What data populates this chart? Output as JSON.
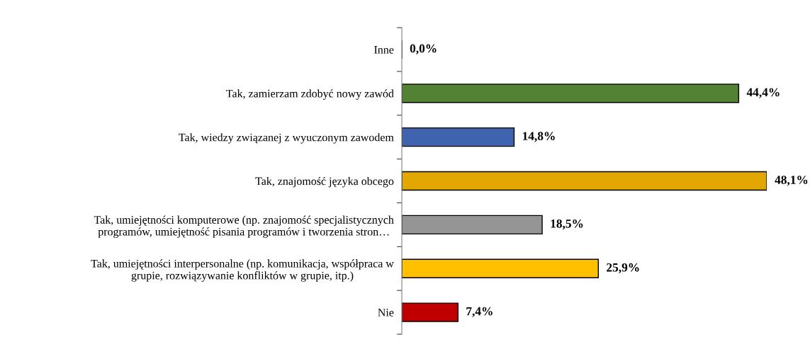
{
  "chart_data": {
    "type": "bar",
    "orientation": "horizontal",
    "categories": [
      "Inne",
      "Tak, zamierzam zdobyć nowy zawód",
      "Tak, wiedzy związanej z wyuczonym zawodem",
      "Tak, znajomość języka obcego",
      "Tak, umiejętności komputerowe (np. znajomość specjalistycznych\nprogramów, umiejętność pisania programów i tworzenia stron…",
      "Tak, umiejętności interpersonalne (np. komunikacja, współpraca w\ngrupie, rozwiązywanie konfliktów w grupie, itp.)",
      "Nie"
    ],
    "values": [
      0.0,
      44.4,
      14.8,
      48.1,
      18.5,
      25.9,
      7.4
    ],
    "colors": [
      "#000000",
      "#548235",
      "#3f64ad",
      "#e2a700",
      "#959595",
      "#ffc000",
      "#c00000"
    ],
    "value_labels": [
      "0,0%",
      "44,4%",
      "14,8%",
      "48,1%",
      "18,5%",
      "25,9%",
      "7,4%"
    ],
    "tick_labels": "y",
    "grid": false,
    "legend": false
  }
}
